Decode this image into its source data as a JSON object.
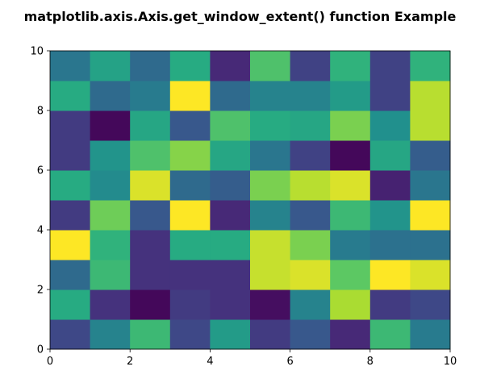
{
  "chart_data": {
    "type": "heatmap",
    "title": "matplotlib.axis.Axis.get_window_extent() function Example",
    "xlabel": "",
    "ylabel": "",
    "xlim": [
      0,
      10
    ],
    "ylim": [
      0,
      10
    ],
    "grid": false,
    "colormap": "viridis",
    "x_ticks": [
      0,
      2,
      4,
      6,
      8,
      10
    ],
    "y_ticks": [
      0,
      2,
      4,
      6,
      8,
      10
    ],
    "x_tick_labels": [
      "0",
      "2",
      "4",
      "6",
      "8",
      "10"
    ],
    "y_tick_labels": [
      "0",
      "2",
      "4",
      "6",
      "8",
      "10"
    ],
    "cell_width": 1,
    "cell_height": 1,
    "rows_from_bottom": [
      [
        0.22,
        0.45,
        0.68,
        0.22,
        0.55,
        0.18,
        0.28,
        0.12,
        0.68,
        0.42
      ],
      [
        0.62,
        0.15,
        0.02,
        0.18,
        0.15,
        0.04,
        0.45,
        0.88,
        0.18,
        0.22
      ],
      [
        0.35,
        0.68,
        0.15,
        0.15,
        0.15,
        0.92,
        0.95,
        0.75,
        1.0,
        0.95
      ],
      [
        1.0,
        0.65,
        0.15,
        0.62,
        0.62,
        0.92,
        0.8,
        0.42,
        0.38,
        0.38
      ],
      [
        0.18,
        0.78,
        0.28,
        1.0,
        0.12,
        0.45,
        0.28,
        0.68,
        0.52,
        1.0
      ],
      [
        0.62,
        0.48,
        0.95,
        0.35,
        0.3,
        0.8,
        0.9,
        0.95,
        0.1,
        0.4
      ],
      [
        0.18,
        0.52,
        0.72,
        0.82,
        0.6,
        0.4,
        0.2,
        0.02,
        0.6,
        0.3
      ],
      [
        0.18,
        0.02,
        0.6,
        0.28,
        0.72,
        0.62,
        0.6,
        0.8,
        0.5,
        0.9
      ],
      [
        0.62,
        0.35,
        0.42,
        1.0,
        0.35,
        0.45,
        0.45,
        0.55,
        0.2,
        0.9
      ],
      [
        0.4,
        0.58,
        0.35,
        0.62,
        0.12,
        0.72,
        0.2,
        0.65,
        0.2,
        0.65
      ]
    ]
  }
}
